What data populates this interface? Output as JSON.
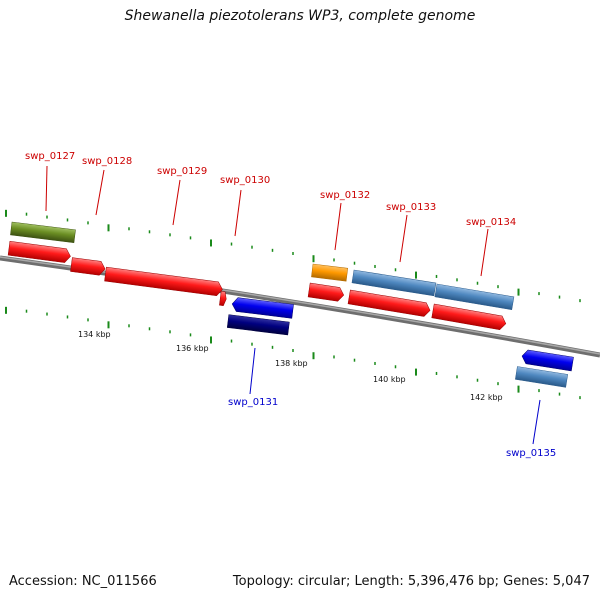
{
  "title": "Shewanella piezotolerans WP3, complete genome",
  "footer": {
    "accession": "Accession: NC_011566",
    "stats": "Topology: circular; Length: 5,396,476 bp; Genes: 5,047"
  },
  "colors": {
    "backbone": "#808080",
    "tick": "#1a8a1a",
    "forward_cds": "#ff1a1a",
    "forward_label": "#cc0000",
    "reverse_label": "#0000cc",
    "reverse_cds": "#0000ee",
    "dark_gene": "#000080",
    "steel_gene": "#4f88c0",
    "olive_gene": "#6b8e23",
    "orange_gene": "#ff9900"
  },
  "kbp_labels": [
    "134 kbp",
    "136 kbp",
    "138 kbp",
    "140 kbp",
    "142 kbp"
  ],
  "genes_forward": [
    "swp_0127",
    "swp_0128",
    "swp_0129",
    "swp_0130",
    "swp_0132",
    "swp_0133",
    "swp_0134"
  ],
  "genes_reverse": [
    "swp_0131",
    "swp_0135"
  ]
}
